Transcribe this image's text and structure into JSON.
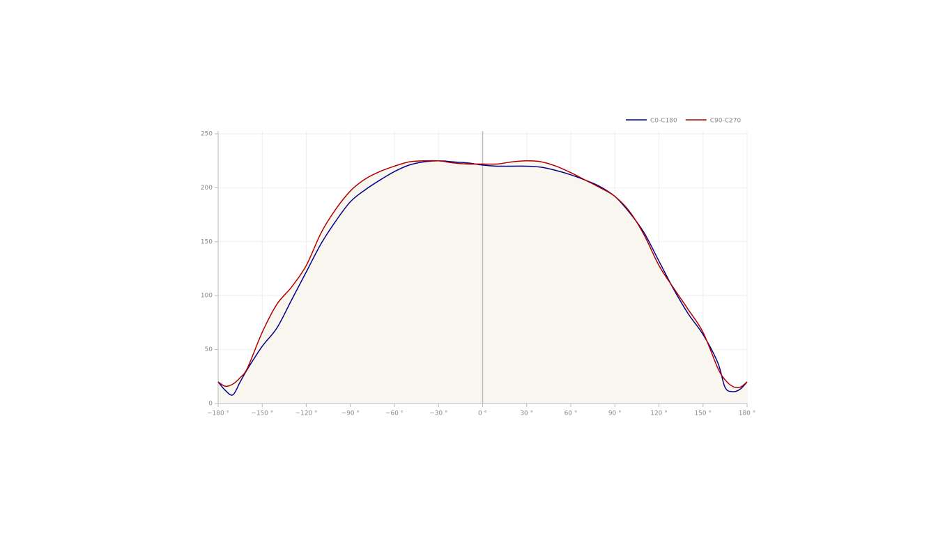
{
  "chart_data": {
    "type": "line",
    "x": [
      -180,
      -175,
      -170,
      -165,
      -160,
      -150,
      -140,
      -130,
      -120,
      -110,
      -100,
      -90,
      -80,
      -70,
      -60,
      -50,
      -40,
      -30,
      -20,
      -10,
      0,
      10,
      20,
      30,
      40,
      50,
      60,
      70,
      80,
      90,
      100,
      110,
      120,
      130,
      140,
      150,
      160,
      165,
      170,
      175,
      180
    ],
    "series": [
      {
        "name": "C0-C180",
        "color": "#00008b",
        "values": [
          20,
          12,
          8,
          20,
          32,
          53,
          70,
          96,
          122,
          148,
          169,
          187,
          198,
          207,
          215,
          221,
          224,
          225,
          224,
          223,
          221,
          220,
          220,
          220,
          219,
          216,
          212,
          207,
          201,
          192,
          177,
          158,
          132,
          106,
          83,
          64,
          38,
          15,
          11,
          13,
          20
        ]
      },
      {
        "name": "C90-C270",
        "color": "#b00000",
        "values": [
          20,
          16,
          18,
          24,
          33,
          66,
          92,
          108,
          128,
          158,
          180,
          197,
          208,
          215,
          220,
          224,
          225,
          225,
          223,
          222,
          222,
          222,
          224,
          225,
          224,
          220,
          214,
          207,
          200,
          192,
          178,
          156,
          128,
          107,
          87,
          66,
          33,
          22,
          16,
          15,
          20
        ]
      }
    ],
    "xlim": [
      -180,
      180
    ],
    "xticks": [
      {
        "value": -180,
        "label": "−180 °"
      },
      {
        "value": -150,
        "label": "−150 °"
      },
      {
        "value": -120,
        "label": "−120 °"
      },
      {
        "value": -90,
        "label": "−90 °"
      },
      {
        "value": -60,
        "label": "−60 °"
      },
      {
        "value": -30,
        "label": "−30 °"
      },
      {
        "value": 0,
        "label": "0 °"
      },
      {
        "value": 30,
        "label": "30 °"
      },
      {
        "value": 60,
        "label": "60 °"
      },
      {
        "value": 90,
        "label": "90 °"
      },
      {
        "value": 120,
        "label": "120 °"
      },
      {
        "value": 150,
        "label": "150 °"
      },
      {
        "value": 180,
        "label": "180 °"
      }
    ],
    "ylim": [
      0,
      250
    ],
    "yticks": [
      0,
      50,
      100,
      150,
      200,
      250
    ],
    "grid": true,
    "legend": "top-right"
  }
}
